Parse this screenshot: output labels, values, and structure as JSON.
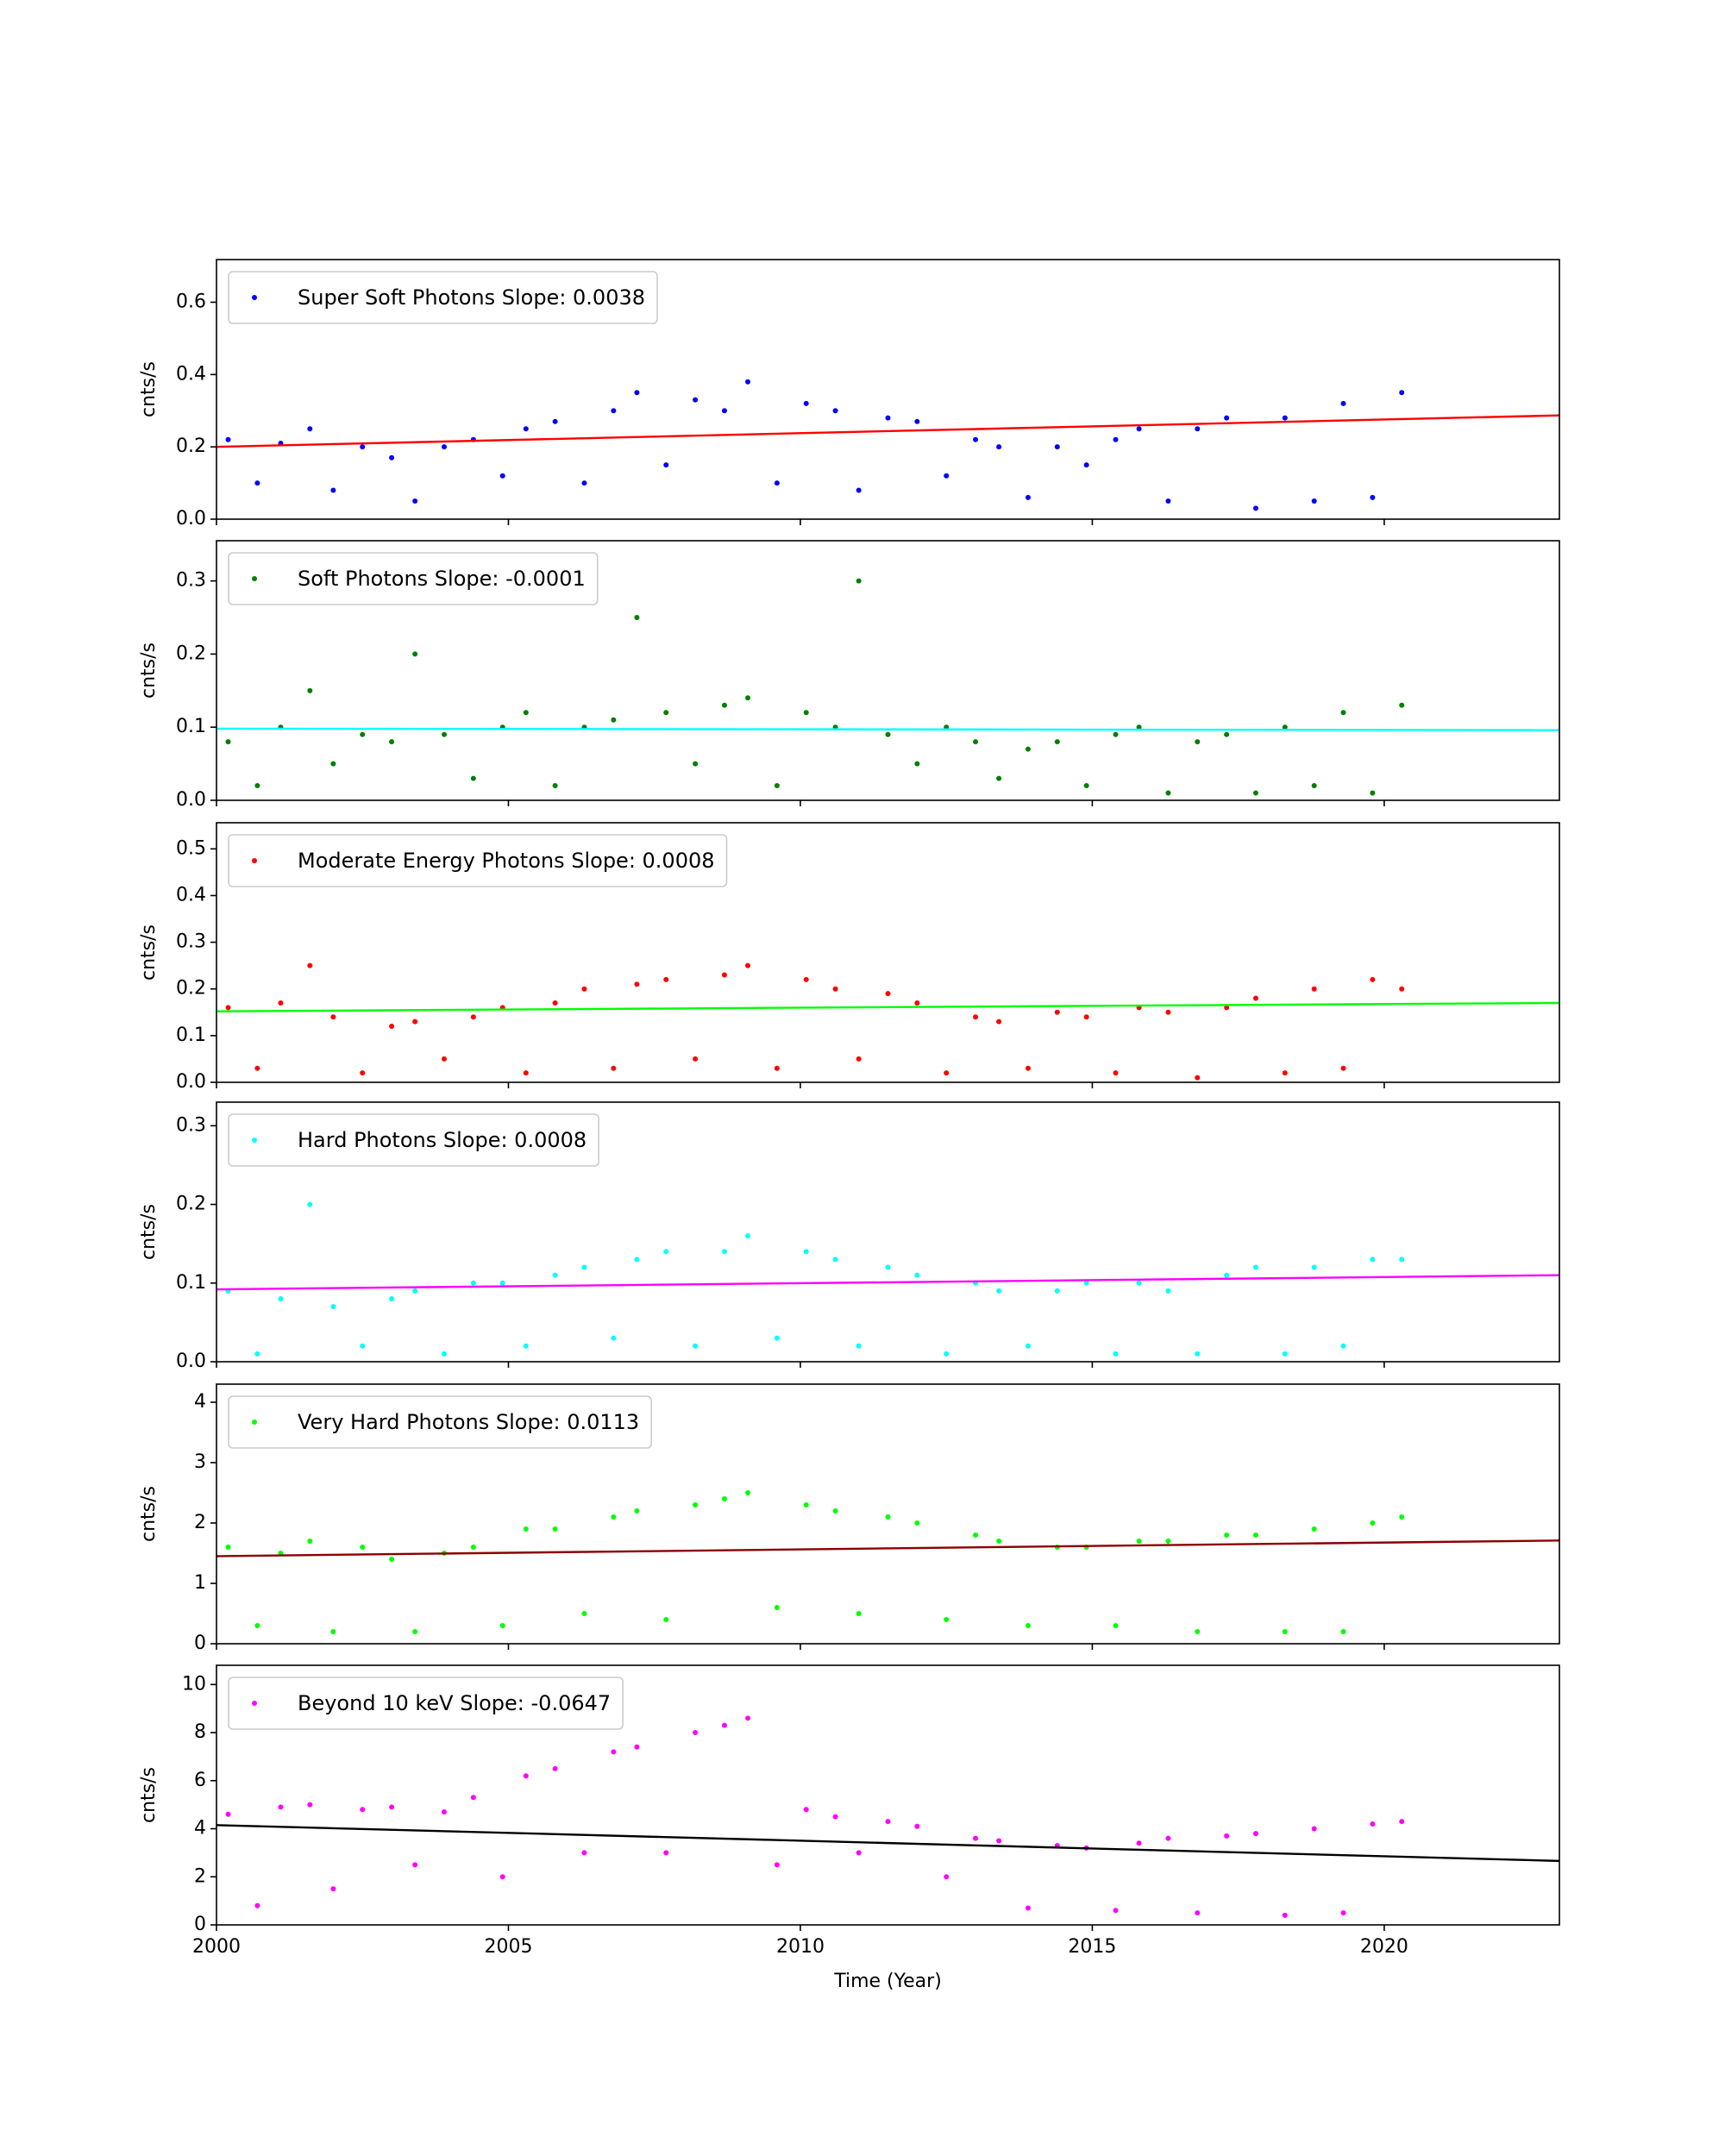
{
  "chart_data": [
    {
      "type": "scatter",
      "ylabel": "cnts/s",
      "legend": "upper left",
      "xlim": [
        2000,
        2023
      ],
      "xticks": [
        2000,
        2005,
        2010,
        2015,
        2020
      ],
      "ylim": [
        0,
        0.718
      ],
      "yticks": [
        {
          "value": 0,
          "label": "0.0"
        },
        {
          "value": 0.2,
          "label": "0.2"
        },
        {
          "value": 0.4,
          "label": "0.4"
        },
        {
          "value": 0.6,
          "label": "0.6"
        }
      ],
      "series": [
        {
          "name": "Super Soft Photons Slope: 0.0038",
          "color": "#0000ff",
          "x": [
            2000.2,
            2000.7,
            2001.1,
            2001.6,
            2002.0,
            2002.5,
            2003.0,
            2003.4,
            2003.9,
            2004.4,
            2004.9,
            2005.3,
            2005.8,
            2006.3,
            2006.8,
            2007.2,
            2007.7,
            2008.2,
            2008.7,
            2009.1,
            2009.6,
            2010.1,
            2010.6,
            2011.0,
            2011.5,
            2012.0,
            2012.5,
            2013.0,
            2013.4,
            2013.9,
            2014.4,
            2014.9,
            2015.4,
            2015.8,
            2016.3,
            2016.8,
            2017.3,
            2017.8,
            2018.3,
            2018.8,
            2019.3,
            2019.8,
            2020.3
          ],
          "values": [
            0.22,
            0.1,
            0.21,
            0.25,
            0.08,
            0.2,
            0.17,
            0.05,
            0.2,
            0.22,
            0.12,
            0.25,
            0.27,
            0.1,
            0.3,
            0.35,
            0.15,
            0.33,
            0.3,
            0.38,
            0.1,
            0.32,
            0.3,
            0.08,
            0.28,
            0.27,
            0.12,
            0.22,
            0.2,
            0.06,
            0.2,
            0.15,
            0.22,
            0.25,
            0.05,
            0.25,
            0.28,
            0.03,
            0.28,
            0.05,
            0.32,
            0.06,
            0.35
          ]
        }
      ],
      "fit": {
        "color": "#ff0000",
        "x": [
          2000,
          2023
        ],
        "values": [
          0.2,
          0.287
        ]
      }
    },
    {
      "type": "scatter",
      "ylabel": "cnts/s",
      "legend": "upper left",
      "xlim": [
        2000,
        2023
      ],
      "xticks": [
        2000,
        2005,
        2010,
        2015,
        2020
      ],
      "ylim": [
        0,
        0.355
      ],
      "yticks": [
        {
          "value": 0,
          "label": "0.0"
        },
        {
          "value": 0.1,
          "label": "0.1"
        },
        {
          "value": 0.2,
          "label": "0.2"
        },
        {
          "value": 0.3,
          "label": "0.3"
        }
      ],
      "series": [
        {
          "name": "Soft Photons Slope: -0.0001",
          "color": "#008000",
          "x": [
            2000.2,
            2000.7,
            2001.1,
            2001.6,
            2002.0,
            2002.5,
            2003.0,
            2003.4,
            2003.9,
            2004.4,
            2004.9,
            2005.3,
            2005.8,
            2006.3,
            2006.8,
            2007.2,
            2007.7,
            2008.2,
            2008.7,
            2009.1,
            2009.6,
            2010.1,
            2010.6,
            2011.0,
            2011.5,
            2012.0,
            2012.5,
            2013.0,
            2013.4,
            2013.9,
            2014.4,
            2014.9,
            2015.4,
            2015.8,
            2016.3,
            2016.8,
            2017.3,
            2017.8,
            2018.3,
            2018.8,
            2019.3,
            2019.8,
            2020.3
          ],
          "values": [
            0.08,
            0.02,
            0.1,
            0.15,
            0.05,
            0.09,
            0.08,
            0.2,
            0.09,
            0.03,
            0.1,
            0.12,
            0.02,
            0.1,
            0.11,
            0.25,
            0.12,
            0.05,
            0.13,
            0.14,
            0.02,
            0.12,
            0.1,
            0.3,
            0.09,
            0.05,
            0.1,
            0.08,
            0.03,
            0.07,
            0.08,
            0.02,
            0.09,
            0.1,
            0.01,
            0.08,
            0.09,
            0.01,
            0.1,
            0.02,
            0.12,
            0.01,
            0.13
          ]
        }
      ],
      "fit": {
        "color": "#00ffff",
        "x": [
          2000,
          2023
        ],
        "values": [
          0.098,
          0.096
        ]
      }
    },
    {
      "type": "scatter",
      "ylabel": "cnts/s",
      "legend": "upper left",
      "xlim": [
        2000,
        2023
      ],
      "xticks": [
        2000,
        2005,
        2010,
        2015,
        2020
      ],
      "ylim": [
        0,
        0.556
      ],
      "yticks": [
        {
          "value": 0,
          "label": "0.0"
        },
        {
          "value": 0.1,
          "label": "0.1"
        },
        {
          "value": 0.2,
          "label": "0.2"
        },
        {
          "value": 0.3,
          "label": "0.3"
        },
        {
          "value": 0.4,
          "label": "0.4"
        },
        {
          "value": 0.5,
          "label": "0.5"
        }
      ],
      "series": [
        {
          "name": "Moderate Energy Photons Slope: 0.0008",
          "color": "#ff0000",
          "x": [
            2000.2,
            2000.7,
            2001.1,
            2001.6,
            2002.0,
            2002.5,
            2003.0,
            2003.4,
            2003.9,
            2004.4,
            2004.9,
            2005.3,
            2005.8,
            2006.3,
            2006.8,
            2007.2,
            2007.7,
            2008.2,
            2008.7,
            2009.1,
            2009.6,
            2010.1,
            2010.6,
            2011.0,
            2011.5,
            2012.0,
            2012.5,
            2013.0,
            2013.4,
            2013.9,
            2014.4,
            2014.9,
            2015.4,
            2015.8,
            2016.3,
            2016.8,
            2017.3,
            2017.8,
            2018.3,
            2018.8,
            2019.3,
            2019.8,
            2020.3
          ],
          "values": [
            0.16,
            0.03,
            0.17,
            0.25,
            0.14,
            0.02,
            0.12,
            0.13,
            0.05,
            0.14,
            0.16,
            0.02,
            0.17,
            0.2,
            0.03,
            0.21,
            0.22,
            0.05,
            0.23,
            0.25,
            0.03,
            0.22,
            0.2,
            0.05,
            0.19,
            0.17,
            0.02,
            0.14,
            0.13,
            0.03,
            0.15,
            0.14,
            0.02,
            0.16,
            0.15,
            0.01,
            0.16,
            0.18,
            0.02,
            0.2,
            0.03,
            0.22,
            0.2
          ]
        }
      ],
      "fit": {
        "color": "#00ff00",
        "x": [
          2000,
          2023
        ],
        "values": [
          0.152,
          0.17
        ]
      }
    },
    {
      "type": "scatter",
      "ylabel": "cnts/s",
      "legend": "upper left",
      "xlim": [
        2000,
        2023
      ],
      "xticks": [
        2000,
        2005,
        2010,
        2015,
        2020
      ],
      "ylim": [
        0,
        0.33
      ],
      "yticks": [
        {
          "value": 0,
          "label": "0.0"
        },
        {
          "value": 0.1,
          "label": "0.1"
        },
        {
          "value": 0.2,
          "label": "0.2"
        },
        {
          "value": 0.3,
          "label": "0.3"
        }
      ],
      "series": [
        {
          "name": "Hard Photons Slope: 0.0008",
          "color": "#00ffff",
          "x": [
            2000.2,
            2000.7,
            2001.1,
            2001.6,
            2002.0,
            2002.5,
            2003.0,
            2003.4,
            2003.9,
            2004.4,
            2004.9,
            2005.3,
            2005.8,
            2006.3,
            2006.8,
            2007.2,
            2007.7,
            2008.2,
            2008.7,
            2009.1,
            2009.6,
            2010.1,
            2010.6,
            2011.0,
            2011.5,
            2012.0,
            2012.5,
            2013.0,
            2013.4,
            2013.9,
            2014.4,
            2014.9,
            2015.4,
            2015.8,
            2016.3,
            2016.8,
            2017.3,
            2017.8,
            2018.3,
            2018.8,
            2019.3,
            2019.8,
            2020.3
          ],
          "values": [
            0.09,
            0.01,
            0.08,
            0.2,
            0.07,
            0.02,
            0.08,
            0.09,
            0.01,
            0.1,
            0.1,
            0.02,
            0.11,
            0.12,
            0.03,
            0.13,
            0.14,
            0.02,
            0.14,
            0.16,
            0.03,
            0.14,
            0.13,
            0.02,
            0.12,
            0.11,
            0.01,
            0.1,
            0.09,
            0.02,
            0.09,
            0.1,
            0.01,
            0.1,
            0.09,
            0.01,
            0.11,
            0.12,
            0.01,
            0.12,
            0.02,
            0.13,
            0.13
          ]
        }
      ],
      "fit": {
        "color": "#ff00ff",
        "x": [
          2000,
          2023
        ],
        "values": [
          0.092,
          0.11
        ]
      }
    },
    {
      "type": "scatter",
      "ylabel": "cnts/s",
      "legend": "upper left",
      "xlim": [
        2000,
        2023
      ],
      "xticks": [
        2000,
        2005,
        2010,
        2015,
        2020
      ],
      "ylim": [
        0,
        4.3
      ],
      "yticks": [
        0,
        1,
        2,
        3,
        4
      ],
      "series": [
        {
          "name": "Very Hard Photons Slope: 0.0113",
          "color": "#00ff00",
          "x": [
            2000.2,
            2000.7,
            2001.1,
            2001.6,
            2002.0,
            2002.5,
            2003.0,
            2003.4,
            2003.9,
            2004.4,
            2004.9,
            2005.3,
            2005.8,
            2006.3,
            2006.8,
            2007.2,
            2007.7,
            2008.2,
            2008.7,
            2009.1,
            2009.6,
            2010.1,
            2010.6,
            2011.0,
            2011.5,
            2012.0,
            2012.5,
            2013.0,
            2013.4,
            2013.9,
            2014.4,
            2014.9,
            2015.4,
            2015.8,
            2016.3,
            2016.8,
            2017.3,
            2017.8,
            2018.3,
            2018.8,
            2019.3,
            2019.8,
            2020.3
          ],
          "values": [
            1.6,
            0.3,
            1.5,
            1.7,
            0.2,
            1.6,
            1.4,
            0.2,
            1.5,
            1.6,
            0.3,
            1.9,
            1.9,
            0.5,
            2.1,
            2.2,
            0.4,
            2.3,
            2.4,
            2.5,
            0.6,
            2.3,
            2.2,
            0.5,
            2.1,
            2.0,
            0.4,
            1.8,
            1.7,
            0.3,
            1.6,
            1.6,
            0.3,
            1.7,
            1.7,
            0.2,
            1.8,
            1.8,
            0.2,
            1.9,
            0.2,
            2.0,
            2.1
          ]
        }
      ],
      "fit": {
        "color": "#8b0000",
        "x": [
          2000,
          2023
        ],
        "values": [
          1.45,
          1.71
        ]
      }
    },
    {
      "type": "scatter",
      "ylabel": "cnts/s",
      "xlabel": "Time (Year)",
      "legend": "upper left",
      "xlim": [
        2000,
        2023
      ],
      "xticks": [
        2000,
        2005,
        2010,
        2015,
        2020
      ],
      "ylim": [
        0,
        10.8
      ],
      "yticks": [
        0,
        2,
        4,
        6,
        8,
        10
      ],
      "series": [
        {
          "name": "Beyond 10 keV Slope: -0.0647",
          "color": "#ff00ff",
          "x": [
            2000.2,
            2000.7,
            2001.1,
            2001.6,
            2002.0,
            2002.5,
            2003.0,
            2003.4,
            2003.9,
            2004.4,
            2004.9,
            2005.3,
            2005.8,
            2006.3,
            2006.8,
            2007.2,
            2007.7,
            2008.2,
            2008.7,
            2009.1,
            2009.6,
            2010.1,
            2010.6,
            2011.0,
            2011.5,
            2012.0,
            2012.5,
            2013.0,
            2013.4,
            2013.9,
            2014.4,
            2014.9,
            2015.4,
            2015.8,
            2016.3,
            2016.8,
            2017.3,
            2017.8,
            2018.3,
            2018.8,
            2019.3,
            2019.8,
            2020.3
          ],
          "values": [
            4.6,
            0.8,
            4.9,
            5.0,
            1.5,
            4.8,
            4.9,
            2.5,
            4.7,
            5.3,
            2.0,
            6.2,
            6.5,
            3.0,
            7.2,
            7.4,
            3.0,
            8.0,
            8.3,
            8.6,
            2.5,
            4.8,
            4.5,
            3.0,
            4.3,
            4.1,
            2.0,
            3.6,
            3.5,
            0.7,
            3.3,
            3.2,
            0.6,
            3.4,
            3.6,
            0.5,
            3.7,
            3.8,
            0.4,
            4.0,
            0.5,
            4.2,
            4.3
          ]
        }
      ],
      "fit": {
        "color": "#000000",
        "x": [
          2000,
          2023
        ],
        "values": [
          4.15,
          2.66
        ]
      }
    }
  ]
}
